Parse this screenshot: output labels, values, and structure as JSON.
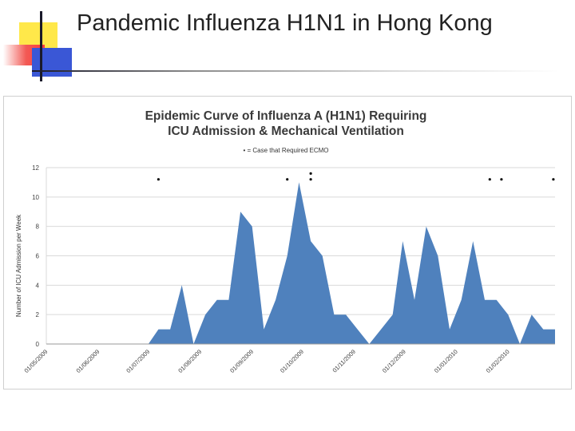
{
  "slide": {
    "title": "Pandemic Influenza H1N1 in Hong Kong"
  },
  "colors": {
    "area_fill": "#4f81bd",
    "accent_yellow": "#ffe84a",
    "accent_red": "#f25a55",
    "accent_blue": "#3a57d6"
  },
  "chart_data": {
    "type": "area",
    "title": "Epidemic Curve of Influenza A (H1N1) Requiring ICU Admission & Mechanical Ventilation",
    "title_lines": [
      "Epidemic Curve of Influenza A (H1N1) Requiring",
      "ICU Admission & Mechanical Ventilation"
    ],
    "subtitle": "• = Case that Required ECMO",
    "ylabel": "Number of ICU Admission per Week",
    "xlabel": "",
    "ylim": [
      0,
      12
    ],
    "yticks": [
      0,
      2,
      4,
      6,
      8,
      10,
      12
    ],
    "grid": true,
    "x_tick_labels": [
      "01/05/2009",
      "01/06/2009",
      "01/07/2009",
      "01/08/2009",
      "01/09/2009",
      "01/10/2009",
      "01/11/2009",
      "01/12/2009",
      "01/01/2010",
      "01/02/2010"
    ],
    "x_tick_dates": [
      "2009-05-01",
      "2009-06-01",
      "2009-07-01",
      "2009-08-01",
      "2009-09-01",
      "2009-10-01",
      "2009-11-01",
      "2009-12-01",
      "2010-01-01",
      "2010-02-01"
    ],
    "x_range": [
      "2009-05-01",
      "2010-03-01"
    ],
    "series": [
      {
        "values": [
          {
            "date": "2009-07-01",
            "y": 0
          },
          {
            "date": "2009-07-07",
            "y": 1
          },
          {
            "date": "2009-07-14",
            "y": 1
          },
          {
            "date": "2009-07-21",
            "y": 4
          },
          {
            "date": "2009-07-28",
            "y": 0
          },
          {
            "date": "2009-08-04",
            "y": 2
          },
          {
            "date": "2009-08-11",
            "y": 3
          },
          {
            "date": "2009-08-18",
            "y": 3
          },
          {
            "date": "2009-08-25",
            "y": 9
          },
          {
            "date": "2009-09-01",
            "y": 8
          },
          {
            "date": "2009-09-08",
            "y": 1
          },
          {
            "date": "2009-09-15",
            "y": 3
          },
          {
            "date": "2009-09-22",
            "y": 6
          },
          {
            "date": "2009-09-29",
            "y": 11
          },
          {
            "date": "2009-10-06",
            "y": 7
          },
          {
            "date": "2009-10-13",
            "y": 6
          },
          {
            "date": "2009-10-20",
            "y": 2
          },
          {
            "date": "2009-10-27",
            "y": 2
          },
          {
            "date": "2009-11-03",
            "y": 1
          },
          {
            "date": "2009-11-10",
            "y": 0
          },
          {
            "date": "2009-11-17",
            "y": 1
          },
          {
            "date": "2009-11-24",
            "y": 2
          },
          {
            "date": "2009-11-30",
            "y": 7
          },
          {
            "date": "2009-12-07",
            "y": 3
          },
          {
            "date": "2009-12-14",
            "y": 8
          },
          {
            "date": "2009-12-21",
            "y": 6
          },
          {
            "date": "2009-12-28",
            "y": 1
          },
          {
            "date": "2010-01-04",
            "y": 3
          },
          {
            "date": "2010-01-11",
            "y": 7
          },
          {
            "date": "2010-01-18",
            "y": 3
          },
          {
            "date": "2010-01-25",
            "y": 3
          },
          {
            "date": "2010-02-01",
            "y": 2
          },
          {
            "date": "2010-02-08",
            "y": 0
          },
          {
            "date": "2010-02-15",
            "y": 2
          },
          {
            "date": "2010-02-22",
            "y": 1
          },
          {
            "date": "2010-03-01",
            "y": 1
          }
        ]
      }
    ],
    "ecmo_cases": [
      {
        "date": "2009-07-07",
        "y": 11.2
      },
      {
        "date": "2009-09-22",
        "y": 11.2
      },
      {
        "date": "2009-10-06",
        "y": 11.2
      },
      {
        "date": "2009-10-06",
        "y": 11.6
      },
      {
        "date": "2010-01-21",
        "y": 11.2
      },
      {
        "date": "2010-01-28",
        "y": 11.2
      },
      {
        "date": "2010-02-28",
        "y": 11.2
      }
    ]
  }
}
